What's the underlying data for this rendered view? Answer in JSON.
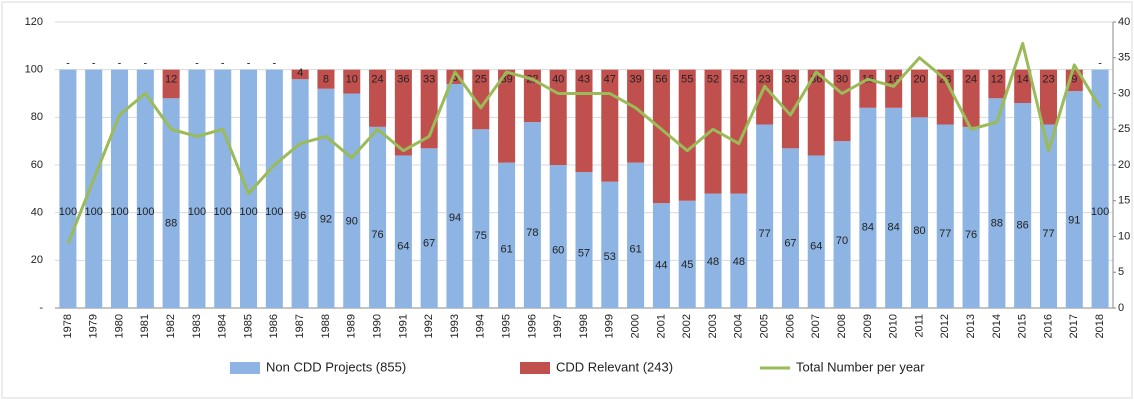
{
  "chart_data": {
    "type": "stacked_bar_line",
    "categories": [
      "1978",
      "1979",
      "1980",
      "1981",
      "1982",
      "1983",
      "1984",
      "1985",
      "1986",
      "1987",
      "1988",
      "1989",
      "1990",
      "1991",
      "1992",
      "1993",
      "1994",
      "1995",
      "1996",
      "1997",
      "1998",
      "1999",
      "2000",
      "2001",
      "2002",
      "2003",
      "2004",
      "2005",
      "2006",
      "2007",
      "2008",
      "2009",
      "2010",
      "2011",
      "2012",
      "2013",
      "2014",
      "2015",
      "2016",
      "2017",
      "2018"
    ],
    "series": [
      {
        "name": "Non CDD Projects (855)",
        "color": "#8db4e2",
        "type": "bar",
        "values": [
          100,
          100,
          100,
          100,
          88,
          100,
          100,
          100,
          100,
          96,
          92,
          90,
          76,
          64,
          67,
          94,
          75,
          61,
          78,
          60,
          57,
          53,
          61,
          44,
          45,
          48,
          48,
          77,
          67,
          64,
          70,
          84,
          84,
          80,
          77,
          76,
          88,
          86,
          77,
          91,
          100
        ]
      },
      {
        "name": "CDD Relevant (243)",
        "color": "#c0504d",
        "type": "bar",
        "values": [
          0,
          0,
          0,
          0,
          12,
          0,
          0,
          0,
          0,
          4,
          8,
          10,
          24,
          36,
          33,
          6,
          25,
          39,
          22,
          40,
          43,
          47,
          39,
          56,
          55,
          52,
          52,
          23,
          33,
          36,
          30,
          16,
          16,
          20,
          23,
          24,
          12,
          14,
          23,
          9,
          0
        ],
        "value_labels": [
          "-",
          "-",
          "-",
          "-",
          "12",
          "-",
          "-",
          "-",
          "-",
          "4",
          "8",
          "10",
          "24",
          "36",
          "33",
          "6",
          "25",
          "39",
          "22",
          "40",
          "43",
          "47",
          "39",
          "56",
          "55",
          "52",
          "52",
          "23",
          "33",
          "36",
          "30",
          "16",
          "16",
          "20",
          "23",
          "24",
          "12",
          "14",
          "23",
          "9",
          "-"
        ]
      },
      {
        "name": "Total Number per year",
        "color": "#9bbb59",
        "type": "line",
        "axis": "y2",
        "values": [
          9,
          18,
          27,
          30,
          25,
          24,
          25,
          16,
          20,
          23,
          24,
          21,
          25,
          22,
          24,
          33,
          28,
          33,
          32,
          30,
          30,
          30,
          28,
          25,
          22,
          25,
          23,
          31,
          27,
          33,
          30,
          32,
          31,
          35,
          32,
          25,
          26,
          37,
          22,
          34,
          28
        ]
      }
    ],
    "ylim": [
      0,
      120
    ],
    "yticks": [
      {
        "value": 0,
        "label": "-"
      },
      20,
      40,
      60,
      80,
      100,
      120
    ],
    "y2lim": [
      0,
      40
    ],
    "y2ticks": [
      0,
      5,
      10,
      15,
      20,
      25,
      30,
      35,
      40
    ],
    "grid": true,
    "legend": "bottom"
  }
}
